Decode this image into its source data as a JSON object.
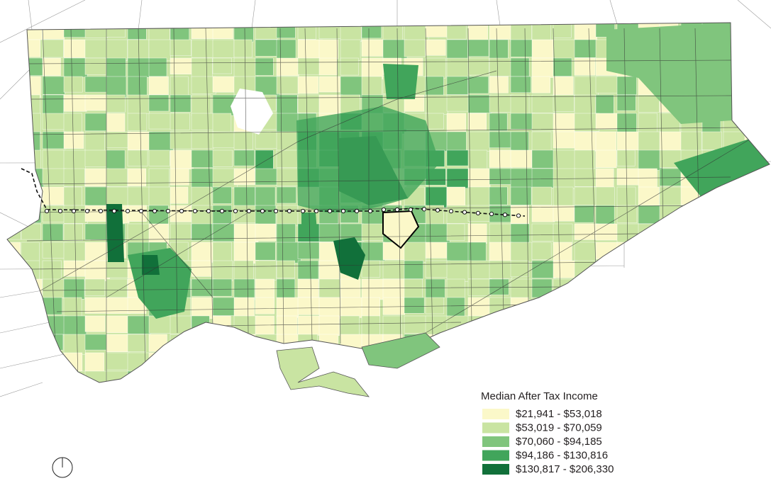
{
  "legend": {
    "title": "Median After Tax Income",
    "items": [
      {
        "label": "$21,941 - $53,018",
        "color": "#fbf8c9"
      },
      {
        "label": "$53,019 - $70,059",
        "color": "#c9e4a2"
      },
      {
        "label": "$70,060 - $94,185",
        "color": "#80c57d"
      },
      {
        "label": "$94,186 - $130,816",
        "color": "#41a55b"
      },
      {
        "label": "$130,817 - $206,330",
        "color": "#11703a"
      }
    ]
  }
}
